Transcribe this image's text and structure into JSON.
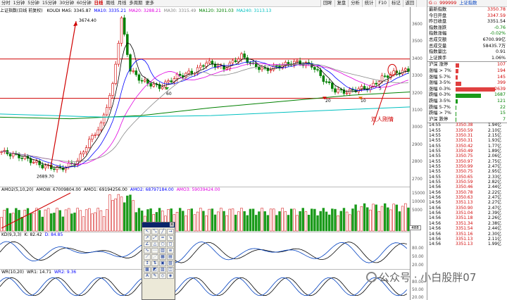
{
  "toolbar": {
    "periods": [
      "分时",
      "1分钟",
      "5分钟",
      "15分钟",
      "30分钟",
      "60分钟",
      "日线",
      "周线",
      "月线",
      "多周期",
      "更多"
    ],
    "selected": "日线",
    "right_tabs": [
      "回眸",
      "复盘",
      "分析",
      "统计",
      "F10",
      "标记",
      "返回"
    ]
  },
  "main_chart": {
    "title": "上证指数(日线 前复权)",
    "ma_labels": [
      {
        "text": "KOUDI MA5: 3345.87",
        "color": "#000000"
      },
      {
        "text": "MA10: 3335.21",
        "color": "#0000ff"
      },
      {
        "text": "MA20: 3288.21",
        "color": "#e000e0"
      },
      {
        "text": "MA30: 3315.49",
        "color": "#888888"
      },
      {
        "text": "MA120: 3201.03",
        "color": "#008000"
      },
      {
        "text": "MA240: 3113.13",
        "color": "#00c0c0"
      }
    ],
    "high_label": "3674.40",
    "low_label": "2689.70",
    "annotation_60": "60",
    "annotation_20": "20",
    "annotation_10": "10",
    "annotation_5": "5",
    "double_label": "双人刚情"
  },
  "y_axis": {
    "main": [
      "3600",
      "3500",
      "3400",
      "3300",
      "3200",
      "3100",
      "3000",
      "2900",
      "2800",
      "2700"
    ],
    "vol": [
      "15000",
      "10000",
      "5000"
    ],
    "kd": [
      "80.00",
      "50.00",
      "20.00"
    ],
    "wr": [
      "80.00",
      "50.00",
      "20.00"
    ],
    "current_marker": "488"
  },
  "amo_bar": {
    "items": [
      {
        "text": "AMO2(5,10,20)",
        "color": "#000000"
      },
      {
        "text": "AMOW: 67009804.00",
        "color": "#000000"
      },
      {
        "text": "AMO1: 69194256.00",
        "color": "#000000"
      },
      {
        "text": "AMO2: 68797184.00",
        "color": "#0000ff"
      },
      {
        "text": "AMO3: 59039424.00",
        "color": "#e000e0"
      }
    ]
  },
  "kd_bar": {
    "items": [
      {
        "text": "KD(9,3,3)",
        "color": "#000000"
      },
      {
        "text": "K: 82.42",
        "color": "#000000"
      },
      {
        "text": "D: 84.85",
        "color": "#0000ff"
      }
    ]
  },
  "wr_bar": {
    "items": [
      {
        "text": "WR(10,20)",
        "color": "#000000"
      },
      {
        "text": "WR1: 14.71",
        "color": "#000000"
      },
      {
        "text": "WR2: 9.36",
        "color": "#0000ff"
      }
    ]
  },
  "right_panel": {
    "code": "999999",
    "name": "上证指数",
    "quotes": [
      {
        "k": "最新指数",
        "v": "3350.78",
        "c": "red"
      },
      {
        "k": "今日开盘",
        "v": "3347.59",
        "c": "red"
      },
      {
        "k": "昨日收盘",
        "v": "3351.54",
        "c": ""
      },
      {
        "k": "指数涨跌",
        "v": "-0.76",
        "c": "grn"
      },
      {
        "k": "指数涨幅",
        "v": "-0.02%",
        "c": "grn"
      },
      {
        "k": "总成交额",
        "v": "6700.99亿",
        "c": ""
      },
      {
        "k": "总成交量",
        "v": "58435.7万",
        "c": ""
      },
      {
        "k": "指数量比",
        "v": "0.91",
        "c": ""
      },
      {
        "k": "上证换手",
        "v": "1.06%",
        "c": ""
      }
    ],
    "breadth": [
      {
        "k": "沪深 涨停",
        "v": "107",
        "c": "red",
        "w": 5
      },
      {
        "k": "涨幅 > 7%",
        "v": "194",
        "c": "red",
        "w": 4
      },
      {
        "k": "涨幅 5-7%",
        "v": "145",
        "c": "red",
        "w": 3
      },
      {
        "k": "涨幅 3-5%",
        "v": "399",
        "c": "red",
        "w": 8
      },
      {
        "k": "涨幅 0-3%",
        "v": "2639",
        "c": "red",
        "w": 56
      },
      {
        "k": "跌幅 0-3%",
        "v": "1687",
        "c": "grn",
        "w": 36
      },
      {
        "k": "跌幅 3-5%",
        "v": "121",
        "c": "grn",
        "w": 3
      },
      {
        "k": "跌幅 5-7%",
        "v": "22",
        "c": "grn",
        "w": 1
      },
      {
        "k": "跌幅 > 7%",
        "v": "15",
        "c": "grn",
        "w": 1
      },
      {
        "k": "沪深 跌停",
        "v": "7",
        "c": "grn",
        "w": 1
      }
    ],
    "ticks": [
      [
        "14:55",
        "3350.38",
        "1.94亿"
      ],
      [
        "14:55",
        "3350.59",
        "2.10亿"
      ],
      [
        "14:55",
        "3350.31",
        "2.15亿"
      ],
      [
        "14:55",
        "3350.31",
        "1.93亿"
      ],
      [
        "14:55",
        "3350.42",
        "1.77亿"
      ],
      [
        "14:55",
        "3350.49",
        "1.89亿"
      ],
      [
        "14:55",
        "3350.75",
        "2.06亿"
      ],
      [
        "14:55",
        "3350.97",
        "2.75亿"
      ],
      [
        "14:55",
        "3350.99",
        "2.47亿"
      ],
      [
        "14:55",
        "3350.75",
        "2.95亿"
      ],
      [
        "14:55",
        "3350.65",
        "2.33亿"
      ],
      [
        "14:55",
        "3350.59",
        "2.82亿"
      ],
      [
        "14:56",
        "3350.46",
        "2.44亿"
      ],
      [
        "14:56",
        "3350.78",
        "2.22亿"
      ],
      [
        "14:56",
        "3350.63",
        "2.47亿"
      ],
      [
        "14:56",
        "3351.13",
        "2.27亿"
      ],
      [
        "14:56",
        "3350.90",
        "2.47亿"
      ],
      [
        "14:56",
        "3351.04",
        "2.39亿"
      ],
      [
        "14:56",
        "3351.18",
        "2.26亿"
      ],
      [
        "14:56",
        "3351.34",
        "2.38亿"
      ],
      [
        "14:56",
        "3351.54",
        "2.44亿"
      ],
      [
        "14:56",
        "3351.16",
        "2.30亿"
      ],
      [
        "14:56",
        "3351.13",
        "2.11亿"
      ],
      [
        "14:56",
        "3351.13",
        "1.99亿"
      ]
    ]
  },
  "watermark": "公众号 · 小白股胖07"
}
